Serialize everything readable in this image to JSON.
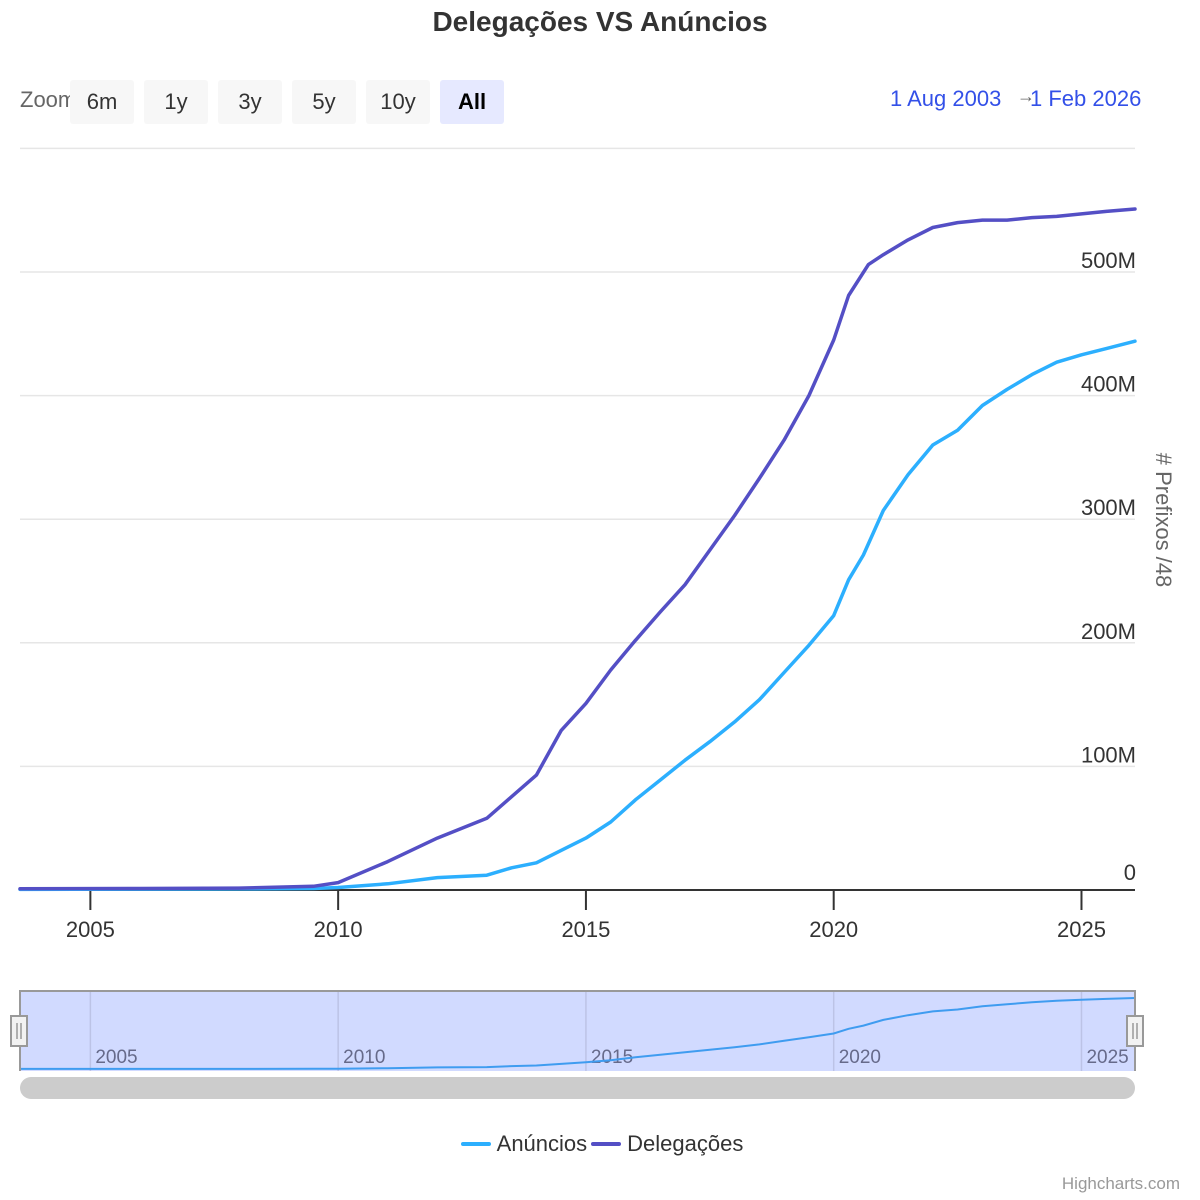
{
  "title": "Delegações VS Anúncios",
  "range_selector": {
    "zoom_label": "Zoom",
    "buttons": [
      "6m",
      "1y",
      "3y",
      "5y",
      "10y",
      "All"
    ],
    "selected": "All",
    "from": "1 Aug 2003",
    "to": "1 Feb 2026",
    "arrow": "→"
  },
  "legend": [
    {
      "name": "Anúncios",
      "color": "#2caffe"
    },
    {
      "name": "Delegações",
      "color": "#544fc5"
    }
  ],
  "credits": "Highcharts.com",
  "chart_data": {
    "type": "line",
    "title": "Delegações VS Anúncios",
    "xlabel": "",
    "ylabel": "# Prefixos /48",
    "xlim": [
      2003.58,
      2026.08
    ],
    "ylim": [
      0,
      600
    ],
    "x_ticks": [
      "2005",
      "2010",
      "2015",
      "2020",
      "2025"
    ],
    "y_ticks": [
      "0",
      "100M",
      "200M",
      "300M",
      "400M",
      "500M"
    ],
    "y_tick_values": [
      0,
      100,
      200,
      300,
      400,
      500
    ],
    "y_unit": "M",
    "grid": true,
    "legend_position": "bottom",
    "series": [
      {
        "name": "Anúncios",
        "color": "#2caffe",
        "x": [
          2003.58,
          2006,
          2008,
          2009.5,
          2010,
          2011,
          2012,
          2013,
          2013.5,
          2014,
          2014.5,
          2015,
          2015.5,
          2016,
          2016.5,
          2017,
          2017.5,
          2018,
          2018.5,
          2019,
          2019.5,
          2020,
          2020.3,
          2020.6,
          2021,
          2021.5,
          2022,
          2022.5,
          2023,
          2023.5,
          2024,
          2024.5,
          2025,
          2025.5,
          2026.08
        ],
        "values": [
          0.5,
          0.7,
          0.9,
          1.2,
          2,
          5,
          10,
          12,
          18,
          22,
          32,
          42,
          55,
          73,
          89,
          105,
          120,
          136,
          154,
          176,
          198,
          222,
          251,
          271,
          307,
          336,
          360,
          372,
          392,
          405,
          417,
          427,
          433,
          438,
          444
        ]
      },
      {
        "name": "Delegações",
        "color": "#544fc5",
        "x": [
          2003.58,
          2006,
          2008,
          2009.5,
          2010,
          2011,
          2012,
          2013,
          2014,
          2014.5,
          2015,
          2015.5,
          2016,
          2016.5,
          2017,
          2017.5,
          2018,
          2018.5,
          2019,
          2019.5,
          2020,
          2020.3,
          2020.7,
          2021,
          2021.5,
          2022,
          2022.5,
          2023,
          2023.5,
          2024,
          2024.5,
          2025,
          2025.5,
          2026.08
        ],
        "values": [
          1,
          1.2,
          1.5,
          3,
          6,
          23,
          42,
          58,
          93,
          129,
          151,
          178,
          202,
          225,
          247,
          275,
          303,
          333,
          364,
          400,
          445,
          481,
          506,
          514,
          526,
          536,
          540,
          542,
          542,
          544,
          545,
          547,
          549,
          551
        ]
      }
    ]
  }
}
